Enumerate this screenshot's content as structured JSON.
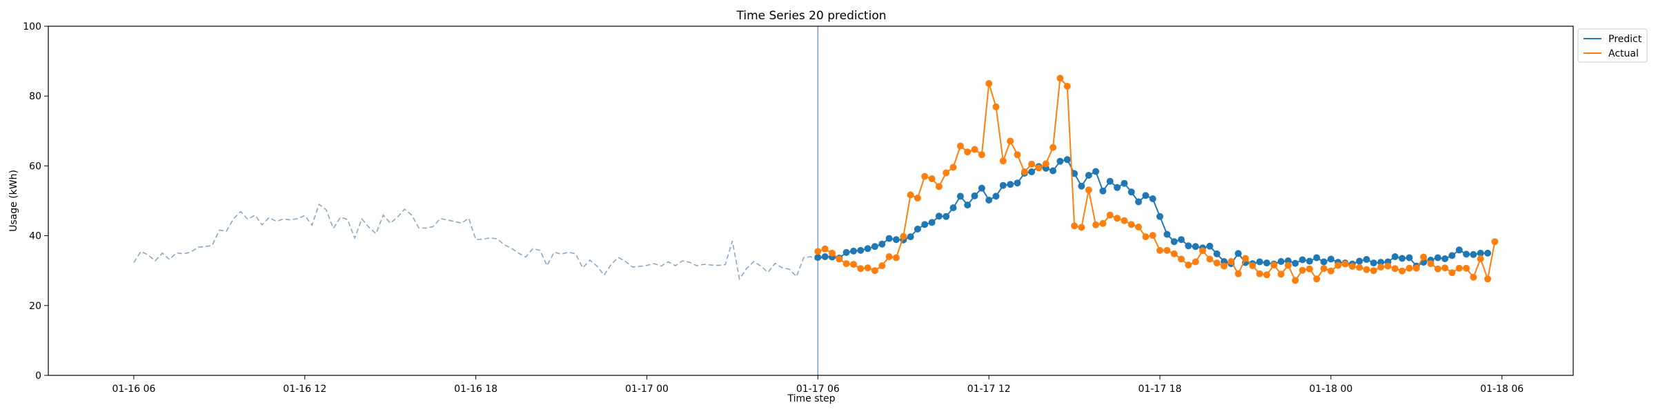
{
  "chart_data": {
    "type": "line",
    "title": "Time Series 20 prediction",
    "xlabel": "Time step",
    "ylabel": "Usage (kWh)",
    "ylim": [
      0,
      100
    ],
    "yticks": [
      0,
      20,
      40,
      60,
      80,
      100
    ],
    "xlim": [
      "2024-01-16 03:00",
      "2024-01-18 08:30"
    ],
    "xticks": [
      {
        "t": "2024-01-16 06:00",
        "label": "01-16 06"
      },
      {
        "t": "2024-01-16 12:00",
        "label": "01-16 12"
      },
      {
        "t": "2024-01-16 18:00",
        "label": "01-16 18"
      },
      {
        "t": "2024-01-17 00:00",
        "label": "01-17 00"
      },
      {
        "t": "2024-01-17 06:00",
        "label": "01-17 06"
      },
      {
        "t": "2024-01-17 12:00",
        "label": "01-17 12"
      },
      {
        "t": "2024-01-17 18:00",
        "label": "01-17 18"
      },
      {
        "t": "2024-01-18 00:00",
        "label": "01-18 00"
      },
      {
        "t": "2024-01-18 06:00",
        "label": "01-18 06"
      }
    ],
    "legend": {
      "position": "upper-right-outside",
      "entries": [
        "Predict",
        "Actual"
      ]
    },
    "grid": false,
    "vline": {
      "t": "2024-01-17 06:00",
      "color": "#7f9cc7"
    },
    "history": {
      "start": "2024-01-16 06:00",
      "step_minutes": 15,
      "color": "#8aa7c9",
      "style": "dashed",
      "values": [
        32.3,
        35.5,
        34.5,
        32.8,
        35.0,
        33.2,
        35.1,
        34.8,
        35.3,
        36.7,
        36.9,
        37.2,
        41.6,
        41.3,
        44.9,
        46.9,
        44.7,
        45.9,
        43.1,
        45.2,
        44.1,
        44.8,
        44.5,
        44.9,
        45.8,
        43.0,
        49.0,
        47.4,
        42.1,
        45.3,
        44.6,
        39.3,
        44.8,
        42.4,
        40.6,
        45.9,
        43.6,
        45.3,
        47.6,
        45.9,
        42.2,
        42.2,
        42.6,
        44.9,
        44.5,
        44.1,
        43.6,
        45.0,
        38.9,
        39.0,
        39.4,
        39.1,
        37.4,
        36.4,
        35.0,
        33.9,
        36.3,
        35.8,
        31.4,
        35.3,
        34.7,
        35.3,
        34.8,
        30.8,
        33.0,
        31.3,
        28.7,
        31.8,
        33.8,
        32.6,
        31.0,
        31.2,
        31.5,
        32.0,
        31.3,
        32.5,
        31.4,
        32.8,
        32.4,
        31.4,
        31.8,
        31.6,
        31.5,
        31.7,
        38.5,
        27.6,
        30.6,
        32.6,
        31.3,
        29.5,
        32.1,
        30.8,
        30.4,
        28.3,
        33.7,
        34.0,
        32.8,
        34.5
      ]
    },
    "series": [
      {
        "name": "Predict",
        "color": "#1f77b4",
        "start": "2024-01-17 06:00",
        "step_minutes": 15,
        "values": [
          33.8,
          34.0,
          33.9,
          33.6,
          35.2,
          35.6,
          35.8,
          36.3,
          36.9,
          37.6,
          39.2,
          38.9,
          38.8,
          39.7,
          41.9,
          43.2,
          43.8,
          45.6,
          45.5,
          48.0,
          51.3,
          48.8,
          51.4,
          53.6,
          50.2,
          51.3,
          54.4,
          54.7,
          55.1,
          57.9,
          58.3,
          59.8,
          59.3,
          58.6,
          61.3,
          61.8,
          57.8,
          54.2,
          57.3,
          58.4,
          52.8,
          55.6,
          53.8,
          55.0,
          52.5,
          49.7,
          51.5,
          50.6,
          45.5,
          40.4,
          38.3,
          38.9,
          37.1,
          36.9,
          36.5,
          37.0,
          34.8,
          32.6,
          32.0,
          34.9,
          32.3,
          32.0,
          32.5,
          32.2,
          31.9,
          32.6,
          32.8,
          32.1,
          33.1,
          32.7,
          33.7,
          32.5,
          33.3,
          32.4,
          32.2,
          31.9,
          32.7,
          33.2,
          32.2,
          32.4,
          32.5,
          34.0,
          33.5,
          33.7,
          31.3,
          32.4,
          33.0,
          33.7,
          33.4,
          34.3,
          35.9,
          34.7,
          34.6,
          35.0,
          35.0
        ]
      },
      {
        "name": "Actual",
        "color": "#ff7f0e",
        "start": "2024-01-17 06:00",
        "step_minutes": 15,
        "values": [
          35.5,
          36.2,
          35.0,
          33.3,
          32.0,
          31.8,
          30.6,
          30.8,
          30.0,
          31.4,
          34.0,
          33.7,
          39.8,
          51.7,
          50.8,
          57.0,
          56.3,
          54.1,
          58.0,
          59.6,
          65.7,
          64.0,
          64.7,
          63.2,
          83.6,
          76.9,
          61.4,
          67.1,
          63.2,
          58.3,
          60.5,
          59.4,
          60.6,
          65.3,
          85.1,
          82.8,
          42.8,
          42.4,
          53.1,
          43.1,
          43.5,
          45.9,
          45.0,
          44.3,
          43.2,
          42.5,
          39.7,
          40.1,
          35.8,
          35.8,
          34.8,
          33.3,
          31.6,
          32.5,
          35.7,
          33.3,
          32.2,
          31.3,
          32.6,
          29.1,
          33.5,
          31.4,
          29.1,
          28.8,
          31.6,
          29.0,
          31.5,
          27.2,
          30.1,
          30.5,
          27.6,
          30.6,
          29.9,
          31.5,
          31.9,
          31.2,
          30.9,
          30.3,
          30.0,
          31.0,
          31.3,
          30.6,
          29.9,
          30.7,
          30.7,
          33.9,
          32.0,
          30.5,
          30.8,
          29.4,
          30.7,
          30.7,
          28.1,
          33.4,
          27.6,
          38.3
        ]
      }
    ]
  }
}
